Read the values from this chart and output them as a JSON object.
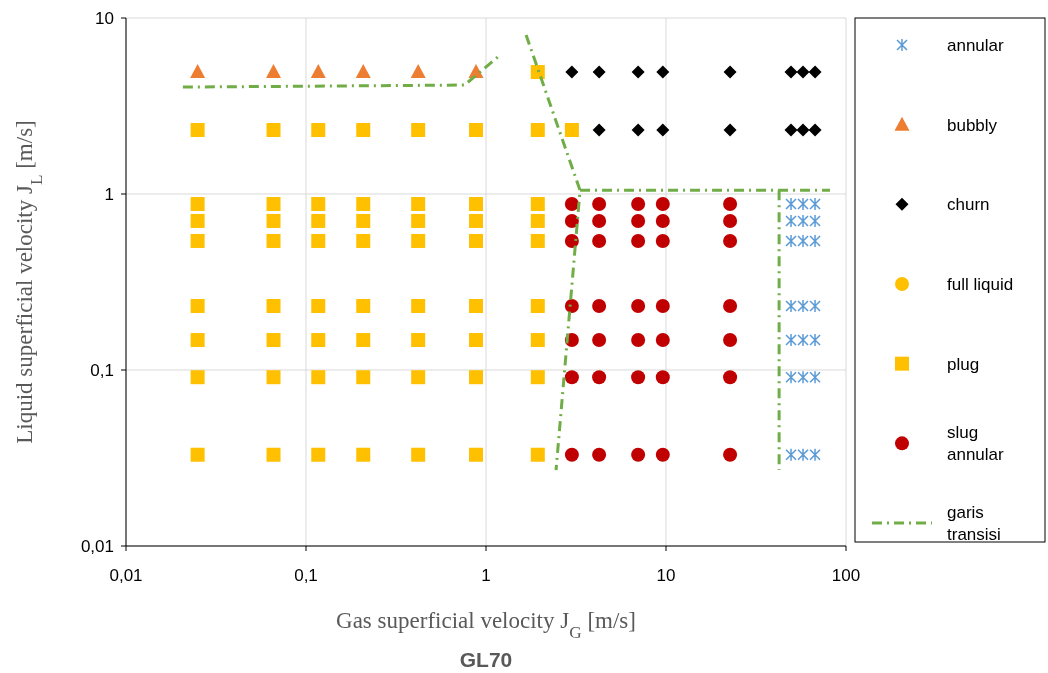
{
  "chart_data": {
    "type": "scatter",
    "title": "GL70",
    "xlabel": "Gas superficial velocity J$_{G}$ [m/s]",
    "ylabel": "Liquid superficial velocity J$_{L}$ [m/s]",
    "log": "xy",
    "grid": true,
    "legend": "right",
    "xlim": [
      0.01,
      100
    ],
    "ylim": [
      0.01,
      10
    ],
    "xticks": [
      {
        "value": 0.01,
        "label": "0,01"
      },
      {
        "value": 0.1,
        "label": "0,1"
      },
      1,
      10,
      100
    ],
    "yticks": [
      {
        "value": 0.01,
        "label": "0,01"
      },
      {
        "value": 0.1,
        "label": "0,1"
      },
      1,
      10
    ],
    "series": [
      {
        "name": "annular",
        "color": "#5b9bd5",
        "marker": "cross",
        "x": [
          49.5,
          57.7,
          67.3,
          49.5,
          57.7,
          67.3,
          49.5,
          57.7,
          67.3,
          49.5,
          57.7,
          67.3,
          49.5,
          57.7,
          67.3,
          49.5,
          57.7,
          67.3,
          49.5,
          57.7,
          67.3
        ],
        "values": [
          0.877,
          0.877,
          0.877,
          0.703,
          0.703,
          0.703,
          0.541,
          0.541,
          0.541,
          0.231,
          0.231,
          0.231,
          0.148,
          0.148,
          0.148,
          0.091,
          0.091,
          0.091,
          0.033,
          0.033,
          0.033
        ]
      },
      {
        "name": "bubbly",
        "color": "#ed7d31",
        "marker": "triangle",
        "x": [
          0.025,
          0.066,
          0.117,
          0.208,
          0.42,
          0.88
        ],
        "values": [
          4.93,
          4.93,
          4.93,
          4.93,
          4.93,
          4.93
        ]
      },
      {
        "name": "churn",
        "color": "#000000",
        "marker": "diamond",
        "x": [
          3.0,
          4.25,
          7.0,
          9.6,
          22.7,
          49.5,
          57.7,
          67.3,
          4.25,
          7.0,
          9.6,
          22.7,
          49.5,
          57.7,
          67.3
        ],
        "values": [
          4.93,
          4.93,
          4.93,
          4.93,
          4.93,
          4.93,
          4.93,
          4.93,
          2.31,
          2.31,
          2.31,
          2.31,
          2.31,
          2.31,
          2.31
        ]
      },
      {
        "name": "full liquid",
        "color": "#ffc000",
        "marker": "circle"
      },
      {
        "name": "plug",
        "color": "#ffc000",
        "marker": "square",
        "x": [
          0.025,
          0.025,
          0.025,
          0.025,
          0.025,
          0.025,
          0.025,
          0.025,
          0.066,
          0.066,
          0.066,
          0.066,
          0.066,
          0.066,
          0.066,
          0.066,
          0.117,
          0.117,
          0.117,
          0.117,
          0.117,
          0.117,
          0.117,
          0.117,
          0.208,
          0.208,
          0.208,
          0.208,
          0.208,
          0.208,
          0.208,
          0.208,
          0.42,
          0.42,
          0.42,
          0.42,
          0.42,
          0.42,
          0.42,
          0.42,
          0.88,
          0.88,
          0.88,
          0.88,
          0.88,
          0.88,
          0.88,
          0.88,
          1.94,
          1.94,
          1.94,
          1.94,
          1.94,
          1.94,
          1.94,
          1.94,
          1.94,
          3.0
        ],
        "values": [
          2.31,
          0.877,
          0.703,
          0.541,
          0.231,
          0.148,
          0.091,
          0.033,
          2.31,
          0.877,
          0.703,
          0.541,
          0.231,
          0.148,
          0.091,
          0.033,
          2.31,
          0.877,
          0.703,
          0.541,
          0.231,
          0.148,
          0.091,
          0.033,
          2.31,
          0.877,
          0.703,
          0.541,
          0.231,
          0.148,
          0.091,
          0.033,
          2.31,
          0.877,
          0.703,
          0.541,
          0.231,
          0.148,
          0.091,
          0.033,
          2.31,
          0.877,
          0.703,
          0.541,
          0.231,
          0.148,
          0.091,
          0.033,
          4.93,
          2.31,
          0.877,
          0.703,
          0.541,
          0.231,
          0.148,
          0.091,
          0.033,
          2.31
        ]
      },
      {
        "name": "slug annular",
        "color": "#c00000",
        "marker": "circle",
        "x": [
          3.0,
          3.0,
          3.0,
          3.0,
          3.0,
          3.0,
          3.0,
          4.25,
          4.25,
          4.25,
          4.25,
          4.25,
          4.25,
          4.25,
          7.0,
          7.0,
          7.0,
          7.0,
          7.0,
          7.0,
          7.0,
          9.6,
          9.6,
          9.6,
          9.6,
          9.6,
          9.6,
          9.6,
          22.7,
          22.7,
          22.7,
          22.7,
          22.7,
          22.7,
          22.7
        ],
        "values": [
          0.877,
          0.703,
          0.541,
          0.231,
          0.148,
          0.091,
          0.033,
          0.877,
          0.703,
          0.541,
          0.231,
          0.148,
          0.091,
          0.033,
          0.877,
          0.703,
          0.541,
          0.231,
          0.148,
          0.091,
          0.033,
          0.877,
          0.703,
          0.541,
          0.231,
          0.148,
          0.091,
          0.033,
          0.877,
          0.703,
          0.541,
          0.231,
          0.148,
          0.091,
          0.033
        ]
      },
      {
        "name": "garis transisi",
        "type": "line",
        "color": "#70ad47",
        "line_style": "dashdot",
        "x": [
          0.0207,
          0.76,
          1.2,
          null,
          1.67,
          3.33,
          2.45,
          null,
          3.33,
          81.5,
          null,
          42.5,
          42.5
        ],
        "values": [
          4.05,
          4.16,
          6.17,
          null,
          8.0,
          1.05,
          0.027,
          null,
          1.05,
          1.05,
          null,
          1.05,
          0.027
        ]
      }
    ]
  }
}
